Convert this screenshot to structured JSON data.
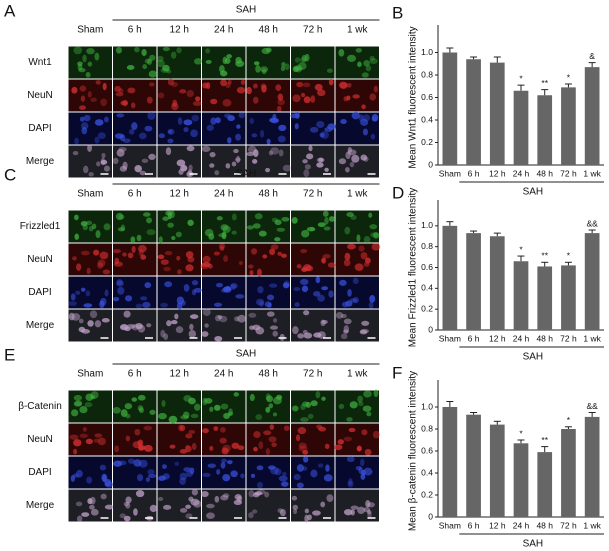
{
  "image_panels": [
    {
      "letter": "A",
      "group": "SAH",
      "columns": [
        "Sham",
        "6 h",
        "12 h",
        "24 h",
        "48 h",
        "72 h",
        "1 wk"
      ],
      "rows": [
        "Wnt1",
        "NeuN",
        "DAPI",
        "Merge"
      ]
    },
    {
      "letter": "C",
      "group": "SAH",
      "columns": [
        "Sham",
        "6 h",
        "12 h",
        "24 h",
        "48 h",
        "72 h",
        "1 wk"
      ],
      "rows": [
        "Frizzled1",
        "NeuN",
        "DAPI",
        "Merge"
      ]
    },
    {
      "letter": "E",
      "group": "SAH",
      "columns": [
        "Sham",
        "6 h",
        "12 h",
        "24 h",
        "48 h",
        "72 h",
        "1 wk"
      ],
      "rows": [
        "β-Catenin",
        "NeuN",
        "DAPI",
        "Merge"
      ]
    }
  ],
  "chart_data": [
    {
      "letter": "B",
      "type": "bar",
      "ylabel": "Mean Wnt1 fluorescent intensity",
      "group": "SAH",
      "color": "#666666",
      "categories": [
        "Sham",
        "6 h",
        "12 h",
        "24 h",
        "48 h",
        "72 h",
        "1 wk"
      ],
      "values": [
        1.0,
        0.94,
        0.91,
        0.66,
        0.62,
        0.69,
        0.87
      ],
      "errors": [
        0.04,
        0.02,
        0.05,
        0.05,
        0.05,
        0.03,
        0.04
      ],
      "annotations": [
        null,
        null,
        null,
        "*",
        "**",
        "*",
        "&"
      ],
      "ylim": [
        0,
        1.2
      ],
      "yticks": [
        0,
        0.2,
        0.4,
        0.6,
        0.8,
        {
          "value": 1,
          "label": "1.0"
        }
      ]
    },
    {
      "letter": "D",
      "type": "bar",
      "ylabel": "Mean Frizzled1 fluorescent intensity",
      "group": "SAH",
      "color": "#666666",
      "categories": [
        "Sham",
        "6 h",
        "12 h",
        "24 h",
        "48 h",
        "72 h",
        "1 wk"
      ],
      "values": [
        1.0,
        0.93,
        0.9,
        0.66,
        0.61,
        0.62,
        0.93
      ],
      "errors": [
        0.04,
        0.02,
        0.03,
        0.05,
        0.04,
        0.03,
        0.03
      ],
      "annotations": [
        null,
        null,
        null,
        "*",
        "**",
        "*",
        "&&"
      ],
      "ylim": [
        0,
        1.2
      ],
      "yticks": [
        0,
        0.2,
        0.4,
        0.6,
        0.8,
        {
          "value": 1,
          "label": "1.0"
        }
      ]
    },
    {
      "letter": "F",
      "type": "bar",
      "ylabel": "Mean β-catenin fluorescent intensity",
      "group": "SAH",
      "color": "#666666",
      "categories": [
        "Sham",
        "6 h",
        "12 h",
        "24 h",
        "48 h",
        "72 h",
        "1 wk"
      ],
      "values": [
        1.0,
        0.93,
        0.84,
        0.67,
        0.59,
        0.8,
        0.91
      ],
      "errors": [
        0.05,
        0.02,
        0.03,
        0.03,
        0.05,
        0.02,
        0.04
      ],
      "annotations": [
        null,
        null,
        null,
        "*",
        "**",
        "*",
        "&&"
      ],
      "ylim": [
        0,
        1.2
      ],
      "yticks": [
        0,
        0.2,
        0.4,
        0.6,
        0.8,
        {
          "value": 1,
          "label": "1.0"
        }
      ]
    }
  ]
}
